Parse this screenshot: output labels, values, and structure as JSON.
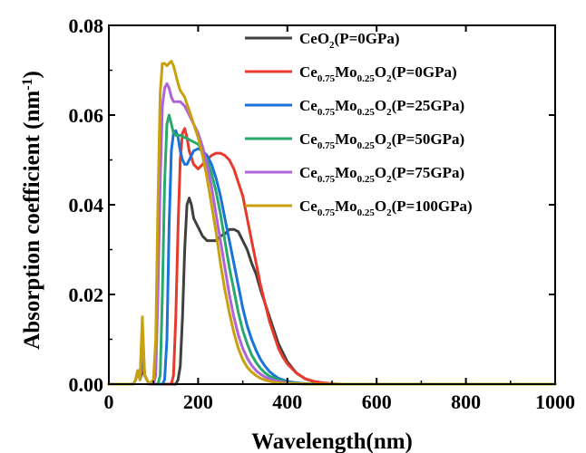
{
  "chart_data": {
    "type": "line",
    "xlabel": "Wavelength(nm)",
    "ylabel": "Absorption coefficient (nm",
    "ylabel_sup": "-1",
    "ylabel_close": ")",
    "xlim": [
      0,
      1000
    ],
    "ylim": [
      0,
      0.08
    ],
    "xticks": [
      0,
      200,
      400,
      600,
      800,
      1000
    ],
    "xtick_labels": [
      "0",
      "200",
      "400",
      "600",
      "800",
      "1000"
    ],
    "yticks": [
      0,
      0.02,
      0.04,
      0.06,
      0.08
    ],
    "ytick_labels": [
      "0.00",
      "0.02",
      "0.04",
      "0.06",
      "0.08"
    ],
    "grid": false,
    "legend_position": "top-right",
    "series": [
      {
        "name": "CeO2(P=0GPa)",
        "legend_parts": [
          [
            "CeO",
            "n"
          ],
          [
            "2",
            "s"
          ],
          [
            "(P=0GPa)",
            "n"
          ]
        ],
        "color": "#404040",
        "x": [
          0,
          40,
          55,
          60,
          65,
          70,
          75,
          80,
          90,
          100,
          110,
          120,
          130,
          140,
          150,
          155,
          160,
          165,
          170,
          175,
          180,
          185,
          190,
          200,
          210,
          220,
          230,
          240,
          250,
          260,
          270,
          280,
          290,
          300,
          310,
          320,
          330,
          340,
          350,
          360,
          370,
          380,
          390,
          400,
          420,
          440,
          460,
          480,
          500,
          520,
          550,
          600,
          700,
          800,
          1000
        ],
        "y": [
          0,
          0,
          0,
          0.001,
          0.003,
          0.001,
          0.003,
          0.002,
          0,
          0,
          0,
          0,
          0,
          0,
          0,
          0.001,
          0.004,
          0.015,
          0.03,
          0.04,
          0.0415,
          0.04,
          0.037,
          0.035,
          0.033,
          0.032,
          0.032,
          0.032,
          0.033,
          0.0335,
          0.0345,
          0.0345,
          0.034,
          0.032,
          0.03,
          0.027,
          0.0245,
          0.021,
          0.018,
          0.015,
          0.012,
          0.009,
          0.007,
          0.005,
          0.0025,
          0.0012,
          0.0005,
          0.0002,
          0,
          0,
          0,
          0,
          0,
          0,
          0
        ]
      },
      {
        "name": "Ce0.75Mo0.25O2(P=0GPa)",
        "legend_parts": [
          [
            "Ce",
            "n"
          ],
          [
            "0.75",
            "s"
          ],
          [
            "Mo",
            "n"
          ],
          [
            "0.25",
            "s"
          ],
          [
            "O",
            "n"
          ],
          [
            "2",
            "s"
          ],
          [
            "(P=0GPa)",
            "n"
          ]
        ],
        "color": "#e8392d",
        "x": [
          0,
          40,
          55,
          60,
          65,
          70,
          75,
          80,
          90,
          100,
          110,
          120,
          130,
          140,
          145,
          150,
          155,
          160,
          165,
          170,
          175,
          180,
          190,
          200,
          210,
          220,
          230,
          240,
          250,
          260,
          270,
          280,
          290,
          300,
          310,
          320,
          330,
          340,
          350,
          360,
          370,
          380,
          390,
          400,
          420,
          440,
          460,
          480,
          500,
          520,
          550,
          600,
          700,
          800,
          1000
        ],
        "y": [
          0,
          0,
          0,
          0.001,
          0.003,
          0.001,
          0.005,
          0.002,
          0,
          0,
          0,
          0,
          0,
          0,
          0.002,
          0.015,
          0.035,
          0.05,
          0.056,
          0.057,
          0.055,
          0.052,
          0.049,
          0.048,
          0.049,
          0.05,
          0.051,
          0.0515,
          0.0515,
          0.051,
          0.05,
          0.048,
          0.045,
          0.042,
          0.037,
          0.032,
          0.027,
          0.022,
          0.018,
          0.014,
          0.011,
          0.008,
          0.006,
          0.0045,
          0.0025,
          0.0012,
          0.0006,
          0.0003,
          0.0001,
          0,
          0,
          0,
          0,
          0,
          0
        ]
      },
      {
        "name": "Ce0.75Mo0.25O2(P=25GPa)",
        "legend_parts": [
          [
            "Ce",
            "n"
          ],
          [
            "0.75",
            "s"
          ],
          [
            "Mo",
            "n"
          ],
          [
            "0.25",
            "s"
          ],
          [
            "O",
            "n"
          ],
          [
            "2",
            "s"
          ],
          [
            "(P=25GPa)",
            "n"
          ]
        ],
        "color": "#1a73d9",
        "x": [
          0,
          40,
          55,
          60,
          65,
          70,
          75,
          80,
          90,
          100,
          110,
          120,
          125,
          130,
          135,
          140,
          145,
          150,
          155,
          160,
          165,
          170,
          175,
          180,
          185,
          190,
          200,
          210,
          220,
          230,
          240,
          250,
          260,
          270,
          280,
          290,
          300,
          310,
          320,
          330,
          340,
          350,
          360,
          370,
          380,
          400,
          420,
          440,
          460,
          500,
          600,
          700,
          800,
          1000
        ],
        "y": [
          0,
          0,
          0,
          0.001,
          0.003,
          0.001,
          0.008,
          0.002,
          0,
          0,
          0,
          0,
          0.001,
          0.01,
          0.035,
          0.052,
          0.056,
          0.0565,
          0.055,
          0.052,
          0.05,
          0.049,
          0.049,
          0.05,
          0.051,
          0.052,
          0.0525,
          0.052,
          0.051,
          0.049,
          0.046,
          0.042,
          0.037,
          0.032,
          0.027,
          0.022,
          0.017,
          0.013,
          0.01,
          0.0075,
          0.0055,
          0.004,
          0.0028,
          0.002,
          0.0013,
          0.0006,
          0.0003,
          0.0001,
          0,
          0,
          0,
          0,
          0,
          0
        ]
      },
      {
        "name": "Ce0.75Mo0.25O2(P=50GPa)",
        "legend_parts": [
          [
            "Ce",
            "n"
          ],
          [
            "0.75",
            "s"
          ],
          [
            "Mo",
            "n"
          ],
          [
            "0.25",
            "s"
          ],
          [
            "O",
            "n"
          ],
          [
            "2",
            "s"
          ],
          [
            "(P=50GPa)",
            "n"
          ]
        ],
        "color": "#2aaa6a",
        "x": [
          0,
          40,
          55,
          60,
          65,
          70,
          75,
          80,
          90,
          100,
          110,
          115,
          120,
          125,
          130,
          135,
          140,
          145,
          150,
          155,
          160,
          165,
          170,
          175,
          180,
          190,
          200,
          210,
          220,
          230,
          240,
          250,
          260,
          270,
          280,
          290,
          300,
          310,
          320,
          330,
          340,
          350,
          360,
          380,
          400,
          420,
          440,
          460,
          500,
          600,
          700,
          800,
          1000
        ],
        "y": [
          0,
          0,
          0,
          0.001,
          0.003,
          0.001,
          0.012,
          0.002,
          0,
          0,
          0,
          0.002,
          0.02,
          0.045,
          0.058,
          0.06,
          0.058,
          0.056,
          0.0555,
          0.0555,
          0.0555,
          0.0553,
          0.055,
          0.0548,
          0.0545,
          0.054,
          0.0535,
          0.052,
          0.05,
          0.047,
          0.043,
          0.038,
          0.032,
          0.026,
          0.021,
          0.016,
          0.012,
          0.009,
          0.0065,
          0.0048,
          0.0035,
          0.0025,
          0.0018,
          0.0009,
          0.0004,
          0.0002,
          0.0001,
          0,
          0,
          0,
          0,
          0,
          0
        ]
      },
      {
        "name": "Ce0.75Mo0.25O2(P=75GPa)",
        "legend_parts": [
          [
            "Ce",
            "n"
          ],
          [
            "0.75",
            "s"
          ],
          [
            "Mo",
            "n"
          ],
          [
            "0.25",
            "s"
          ],
          [
            "O",
            "n"
          ],
          [
            "2",
            "s"
          ],
          [
            "(P=75GPa)",
            "n"
          ]
        ],
        "color": "#b163d8",
        "x": [
          0,
          40,
          55,
          60,
          65,
          70,
          75,
          80,
          90,
          100,
          105,
          110,
          115,
          120,
          125,
          130,
          135,
          140,
          145,
          150,
          155,
          160,
          170,
          180,
          190,
          200,
          210,
          220,
          230,
          240,
          250,
          260,
          270,
          280,
          290,
          300,
          310,
          320,
          330,
          340,
          350,
          370,
          390,
          420,
          450,
          500,
          600,
          700,
          800,
          1000
        ],
        "y": [
          0,
          0,
          0,
          0.001,
          0.003,
          0.001,
          0.013,
          0.002,
          0,
          0,
          0.002,
          0.02,
          0.045,
          0.062,
          0.066,
          0.067,
          0.066,
          0.064,
          0.063,
          0.063,
          0.063,
          0.063,
          0.062,
          0.06,
          0.058,
          0.056,
          0.053,
          0.049,
          0.044,
          0.038,
          0.032,
          0.026,
          0.02,
          0.015,
          0.011,
          0.008,
          0.0058,
          0.0042,
          0.003,
          0.0022,
          0.0016,
          0.0008,
          0.0004,
          0.0001,
          0,
          0,
          0,
          0,
          0,
          0
        ]
      },
      {
        "name": "Ce0.75Mo0.25O2(P=100GPa)",
        "legend_parts": [
          [
            "Ce",
            "n"
          ],
          [
            "0.75",
            "s"
          ],
          [
            "Mo",
            "n"
          ],
          [
            "0.25",
            "s"
          ],
          [
            "O",
            "n"
          ],
          [
            "2",
            "s"
          ],
          [
            "(P=100GPa)",
            "n"
          ]
        ],
        "color": "#c9a10c",
        "x": [
          0,
          40,
          55,
          60,
          65,
          70,
          75,
          80,
          90,
          100,
          105,
          110,
          115,
          120,
          125,
          130,
          135,
          140,
          145,
          150,
          155,
          160,
          170,
          180,
          190,
          200,
          210,
          220,
          230,
          240,
          250,
          260,
          270,
          280,
          290,
          300,
          310,
          320,
          330,
          340,
          350,
          370,
          390,
          420,
          450,
          500,
          600,
          700,
          800,
          1000
        ],
        "y": [
          0,
          0,
          0,
          0.001,
          0.003,
          0.001,
          0.015,
          0.002,
          0,
          0.001,
          0.01,
          0.04,
          0.065,
          0.0715,
          0.0715,
          0.071,
          0.0715,
          0.072,
          0.071,
          0.069,
          0.067,
          0.0655,
          0.064,
          0.061,
          0.058,
          0.055,
          0.051,
          0.046,
          0.04,
          0.034,
          0.027,
          0.021,
          0.016,
          0.0115,
          0.008,
          0.0055,
          0.0038,
          0.0027,
          0.0019,
          0.0013,
          0.0009,
          0.0004,
          0.0002,
          0.0001,
          0,
          0,
          0,
          0,
          0,
          0
        ]
      }
    ]
  }
}
